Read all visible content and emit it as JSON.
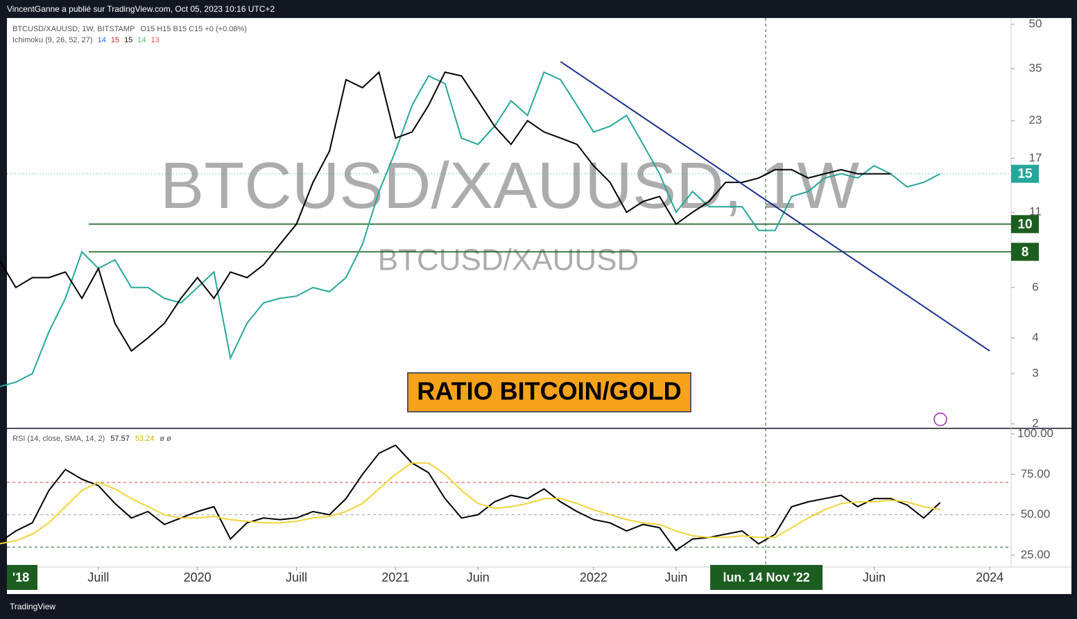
{
  "header": "VincentGanne a publié sur TradingView.com, Oct 05, 2023 10:16 UTC+2",
  "footer": "TradingView",
  "chart_data": [
    {
      "type": "line",
      "title": "BTCUSD/XAUUSD, 1W, BITSTAMP",
      "ohlc": "O15 H15 B15 C15 +0 (+0.08%)",
      "indicator": "Ichimoku (9, 26, 52, 27)",
      "indicator_values": [
        14,
        15,
        15,
        14,
        13
      ],
      "indicator_colors": [
        "#2962ff",
        "#c62828",
        "#131722",
        "#66bb6a",
        "#ef5350"
      ],
      "watermark": "BTCUSD/XAUUSD, 1W",
      "watermark_small": "BTCUSD/XAUUSD",
      "annotation": "RATIO BITCOIN/GOLD",
      "log_scale": true,
      "x": [
        "2019-01",
        "2019-02",
        "2019-03",
        "2019-04",
        "2019-05",
        "2019-06",
        "2019-07",
        "2019-08",
        "2019-09",
        "2019-10",
        "2019-11",
        "2019-12",
        "2020-01",
        "2020-02",
        "2020-03",
        "2020-04",
        "2020-05",
        "2020-06",
        "2020-07",
        "2020-08",
        "2020-09",
        "2020-10",
        "2020-11",
        "2020-12",
        "2021-01",
        "2021-02",
        "2021-03",
        "2021-04",
        "2021-05",
        "2021-06",
        "2021-07",
        "2021-08",
        "2021-09",
        "2021-10",
        "2021-11",
        "2021-12",
        "2022-01",
        "2022-02",
        "2022-03",
        "2022-04",
        "2022-05",
        "2022-06",
        "2022-07",
        "2022-08",
        "2022-09",
        "2022-10",
        "2022-11",
        "2022-12",
        "2023-01",
        "2023-02",
        "2023-03",
        "2023-04",
        "2023-05",
        "2023-06",
        "2023-07",
        "2023-08",
        "2023-09",
        "2023-10"
      ],
      "series": [
        {
          "color": "#26a69a",
          "values": [
            2.7,
            2.8,
            3.0,
            4.2,
            5.5,
            8,
            7,
            7.5,
            6,
            6,
            5.5,
            5.3,
            6,
            6.8,
            3.4,
            4.5,
            5.3,
            5.5,
            5.6,
            6,
            5.8,
            6.5,
            8.5,
            13,
            18,
            26,
            33,
            31,
            20,
            19,
            22,
            27,
            24,
            34,
            32,
            26,
            21,
            22,
            24,
            19,
            15,
            11,
            13,
            11.5,
            11.5,
            11.5,
            9.5,
            9.5,
            12.5,
            13,
            14.5,
            15,
            14.5,
            16,
            15,
            13.5,
            14,
            15
          ]
        },
        {
          "color": "#000000",
          "values": [
            7.5,
            6,
            6.5,
            6.5,
            6.8,
            5.5,
            7,
            4.5,
            3.6,
            4,
            4.5,
            5.5,
            6.5,
            5.5,
            6.8,
            6.5,
            7.2,
            8.5,
            10,
            14,
            18,
            32,
            30,
            34,
            20,
            21,
            26,
            34,
            33,
            27,
            22,
            19,
            23,
            21,
            20,
            19,
            16,
            14,
            11,
            12,
            12.5,
            10,
            11,
            12,
            14,
            14,
            14.5,
            15.5,
            15.5,
            14.5,
            15,
            15.5,
            15,
            15,
            15,
            null,
            null,
            null
          ]
        }
      ],
      "levels": [
        {
          "value": 15,
          "color": "#26a69a",
          "style": "dotted"
        },
        {
          "value": 10,
          "color": "#1b5e20",
          "style": "solid"
        },
        {
          "value": 8,
          "color": "#1b5e20",
          "style": "solid"
        }
      ],
      "trendline": {
        "x": [
          "2021-11",
          "2024-01"
        ],
        "values": [
          37,
          3.6
        ],
        "color": "#1a2f8f"
      },
      "ylim": [
        1.93,
        52
      ],
      "yticks": [
        50,
        35,
        23,
        17,
        11,
        6,
        4,
        3,
        2
      ]
    },
    {
      "type": "line",
      "title": "RSI (14, close, SMA, 14, 2)",
      "extra": "ø ø",
      "series": [
        {
          "color": "#000000",
          "values": [
            33,
            40,
            45,
            65,
            78,
            72,
            68,
            57,
            48,
            52,
            44,
            48,
            52,
            55,
            35,
            45,
            48,
            47,
            48,
            52,
            50,
            60,
            75,
            88,
            93,
            82,
            76,
            60,
            48,
            50,
            58,
            62,
            60,
            66,
            58,
            52,
            47,
            45,
            40,
            44,
            42,
            28,
            35,
            36,
            38,
            40,
            32,
            38,
            55,
            58,
            60,
            62,
            55,
            60,
            60,
            56,
            48,
            57.57
          ]
        },
        {
          "color": "#f2d33a",
          "values": [
            32,
            34,
            38,
            45,
            55,
            65,
            70,
            66,
            60,
            55,
            50,
            48,
            48,
            49,
            47,
            46,
            45,
            45,
            46,
            48,
            49,
            52,
            57,
            66,
            75,
            82,
            82,
            75,
            65,
            57,
            54,
            55,
            57,
            60,
            60,
            57,
            53,
            50,
            47,
            45,
            44,
            40,
            37,
            36,
            36,
            37,
            36,
            36,
            42,
            48,
            53,
            57,
            58,
            58,
            59,
            58,
            55,
            53.24
          ]
        }
      ],
      "levels": [
        {
          "value": 70,
          "color": "#e53935"
        },
        {
          "value": 50,
          "color": "#9e9e9e"
        },
        {
          "value": 30,
          "color": "#1b5e20"
        }
      ],
      "ylim": [
        17.7,
        103.4
      ],
      "yticks": [
        {
          "value": 100,
          "label": "100.00"
        },
        {
          "value": 75,
          "label": "75.00"
        },
        {
          "value": 50,
          "label": "50.00"
        },
        {
          "value": 25,
          "label": "25.00"
        }
      ],
      "xlim": [
        "2019-01-15",
        "2024-02-10"
      ],
      "xticks": [
        {
          "value": "2019-07",
          "label": "Juill"
        },
        {
          "value": "2020-01",
          "label": "2020"
        },
        {
          "value": "2020-07",
          "label": "Juill"
        },
        {
          "value": "2021-01",
          "label": "2021"
        },
        {
          "value": "2021-06",
          "label": "Juin"
        },
        {
          "value": "2022-01",
          "label": "2022"
        },
        {
          "value": "2022-06",
          "label": "Juin"
        },
        {
          "value": "2023-06",
          "label": "Juin"
        },
        {
          "value": "2024-01",
          "label": "2024"
        }
      ],
      "start_label": "'18",
      "cursor": {
        "x": "2022-11-14",
        "label": "lun. 14 Nov '22"
      }
    }
  ]
}
